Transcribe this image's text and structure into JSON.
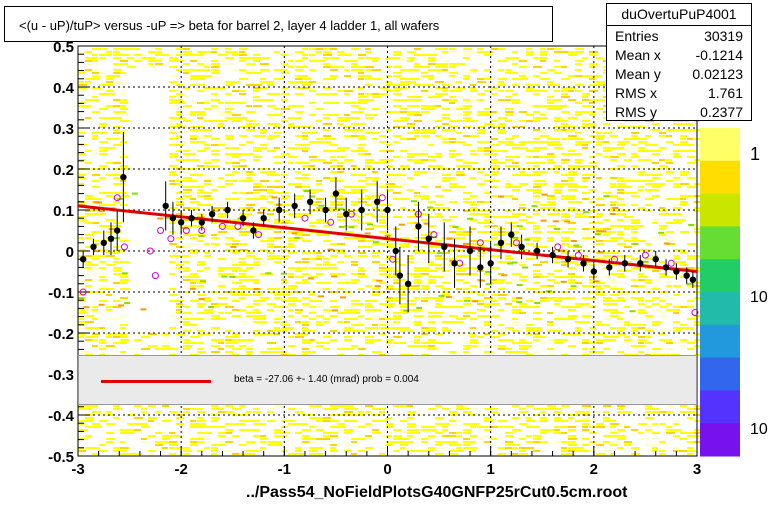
{
  "title": "<(u - uP)/tuP> versus  -uP => beta for barrel 2, layer 4 ladder 1, all wafers",
  "stats": {
    "name": "duOvertuPuP4001",
    "rows": [
      {
        "label": "Entries",
        "value": "30319"
      },
      {
        "label": "Mean x",
        "value": "-0.1214"
      },
      {
        "label": "Mean y",
        "value": "0.02123"
      },
      {
        "label": "RMS x",
        "value": "1.761"
      },
      {
        "label": "RMS y",
        "value": "0.2377"
      }
    ]
  },
  "legend_text": "beta =  -27.06 +-  1.40 (mrad) prob = 0.004",
  "footer": "../Pass54_NoFieldPlotsG40GNFP25rCut0.5cm.root",
  "colors": {
    "fit": "#e00000",
    "profile": "#000000",
    "open_marker": "#cc00cc",
    "heat_main": "#ffff00",
    "heat_bg": "#ffffc8"
  },
  "chart_data": {
    "type": "scatter",
    "xlim": [
      -3,
      3
    ],
    "ylim": [
      -0.5,
      0.5
    ],
    "x_ticks": [
      -3,
      -2,
      -1,
      0,
      1,
      2,
      3
    ],
    "y_ticks": [
      -0.5,
      -0.4,
      -0.3,
      -0.2,
      -0.1,
      0,
      0.1,
      0.2,
      0.3,
      0.4,
      0.5
    ],
    "x_tick_labels": [
      "-3",
      "-2",
      "-1",
      "0",
      "1",
      "2",
      "3"
    ],
    "y_tick_labels": [
      "-0.5",
      "-0.4",
      "-0.3",
      "-0.2",
      "-0.1",
      "0",
      "0.1",
      "0.2",
      "0.3",
      "0.4",
      "0.5"
    ],
    "grid": true,
    "colorbar_labels": [
      "1",
      "10",
      "10"
    ],
    "fit_line": {
      "x": [
        -3,
        3
      ],
      "y": [
        0.11,
        -0.05
      ]
    },
    "profile": [
      {
        "x": -2.95,
        "y": -0.02,
        "e": 0.02
      },
      {
        "x": -2.85,
        "y": 0.01,
        "e": 0.02
      },
      {
        "x": -2.75,
        "y": 0.02,
        "e": 0.03
      },
      {
        "x": -2.68,
        "y": 0.03,
        "e": 0.04
      },
      {
        "x": -2.62,
        "y": 0.05,
        "e": 0.05
      },
      {
        "x": -2.56,
        "y": 0.18,
        "e": 0.11
      },
      {
        "x": -2.15,
        "y": 0.11,
        "e": 0.06
      },
      {
        "x": -2.08,
        "y": 0.08,
        "e": 0.04
      },
      {
        "x": -2.0,
        "y": 0.07,
        "e": 0.03
      },
      {
        "x": -1.9,
        "y": 0.08,
        "e": 0.02
      },
      {
        "x": -1.8,
        "y": 0.07,
        "e": 0.02
      },
      {
        "x": -1.7,
        "y": 0.09,
        "e": 0.02
      },
      {
        "x": -1.55,
        "y": 0.1,
        "e": 0.02
      },
      {
        "x": -1.4,
        "y": 0.08,
        "e": 0.02
      },
      {
        "x": -1.3,
        "y": 0.05,
        "e": 0.02
      },
      {
        "x": -1.2,
        "y": 0.08,
        "e": 0.02
      },
      {
        "x": -1.05,
        "y": 0.1,
        "e": 0.03
      },
      {
        "x": -0.9,
        "y": 0.11,
        "e": 0.03
      },
      {
        "x": -0.75,
        "y": 0.12,
        "e": 0.03
      },
      {
        "x": -0.6,
        "y": 0.1,
        "e": 0.03
      },
      {
        "x": -0.5,
        "y": 0.14,
        "e": 0.04
      },
      {
        "x": -0.4,
        "y": 0.09,
        "e": 0.04
      },
      {
        "x": -0.25,
        "y": 0.1,
        "e": 0.05
      },
      {
        "x": -0.1,
        "y": 0.12,
        "e": 0.05
      },
      {
        "x": 0.0,
        "y": 0.1,
        "e": 0.05
      },
      {
        "x": 0.08,
        "y": 0.0,
        "e": 0.06
      },
      {
        "x": 0.12,
        "y": -0.06,
        "e": 0.07
      },
      {
        "x": 0.2,
        "y": -0.08,
        "e": 0.07
      },
      {
        "x": 0.3,
        "y": 0.06,
        "e": 0.06
      },
      {
        "x": 0.4,
        "y": 0.03,
        "e": 0.06
      },
      {
        "x": 0.55,
        "y": 0.01,
        "e": 0.06
      },
      {
        "x": 0.65,
        "y": -0.03,
        "e": 0.06
      },
      {
        "x": 0.8,
        "y": 0.0,
        "e": 0.06
      },
      {
        "x": 0.9,
        "y": -0.04,
        "e": 0.05
      },
      {
        "x": 1.0,
        "y": -0.03,
        "e": 0.05
      },
      {
        "x": 1.1,
        "y": 0.02,
        "e": 0.04
      },
      {
        "x": 1.2,
        "y": 0.04,
        "e": 0.03
      },
      {
        "x": 1.3,
        "y": 0.01,
        "e": 0.03
      },
      {
        "x": 1.45,
        "y": 0.0,
        "e": 0.02
      },
      {
        "x": 1.6,
        "y": -0.01,
        "e": 0.02
      },
      {
        "x": 1.75,
        "y": -0.02,
        "e": 0.02
      },
      {
        "x": 1.9,
        "y": -0.03,
        "e": 0.02
      },
      {
        "x": 2.0,
        "y": -0.05,
        "e": 0.02
      },
      {
        "x": 2.15,
        "y": -0.04,
        "e": 0.02
      },
      {
        "x": 2.3,
        "y": -0.03,
        "e": 0.02
      },
      {
        "x": 2.45,
        "y": -0.03,
        "e": 0.02
      },
      {
        "x": 2.6,
        "y": -0.02,
        "e": 0.02
      },
      {
        "x": 2.7,
        "y": -0.04,
        "e": 0.02
      },
      {
        "x": 2.8,
        "y": -0.05,
        "e": 0.02
      },
      {
        "x": 2.9,
        "y": -0.06,
        "e": 0.02
      },
      {
        "x": 2.96,
        "y": -0.07,
        "e": 0.02
      }
    ],
    "open_markers": [
      {
        "x": -2.95,
        "y": -0.1
      },
      {
        "x": -2.62,
        "y": 0.13
      },
      {
        "x": -2.55,
        "y": 0.01
      },
      {
        "x": -2.3,
        "y": 0.0
      },
      {
        "x": -2.25,
        "y": -0.06
      },
      {
        "x": -2.2,
        "y": 0.05
      },
      {
        "x": -2.1,
        "y": 0.03
      },
      {
        "x": -1.95,
        "y": 0.05
      },
      {
        "x": -1.8,
        "y": 0.05
      },
      {
        "x": -1.6,
        "y": 0.06
      },
      {
        "x": -1.45,
        "y": 0.06
      },
      {
        "x": -1.25,
        "y": 0.04
      },
      {
        "x": -0.8,
        "y": 0.08
      },
      {
        "x": -0.55,
        "y": 0.07
      },
      {
        "x": -0.35,
        "y": 0.09
      },
      {
        "x": -0.05,
        "y": 0.13
      },
      {
        "x": 0.05,
        "y": -0.02
      },
      {
        "x": 0.3,
        "y": 0.09
      },
      {
        "x": 0.45,
        "y": 0.04
      },
      {
        "x": 0.7,
        "y": -0.03
      },
      {
        "x": 0.9,
        "y": 0.02
      },
      {
        "x": 1.25,
        "y": 0.02
      },
      {
        "x": 1.65,
        "y": 0.01
      },
      {
        "x": 1.85,
        "y": -0.01
      },
      {
        "x": 2.2,
        "y": -0.02
      },
      {
        "x": 2.5,
        "y": -0.01
      },
      {
        "x": 2.75,
        "y": -0.03
      },
      {
        "x": 2.98,
        "y": -0.15
      }
    ]
  }
}
